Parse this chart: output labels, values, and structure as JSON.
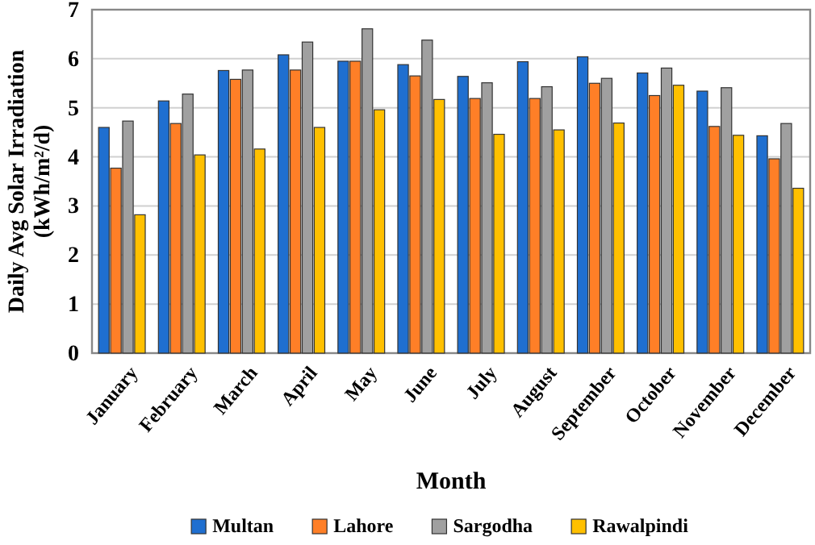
{
  "chart_data": {
    "type": "bar",
    "xlabel": "Month",
    "ylabel": "Daily Avg Solar Irradiation (kWh/m²/d)",
    "categories": [
      "January",
      "February",
      "March",
      "April",
      "May",
      "June",
      "July",
      "August",
      "September",
      "October",
      "November",
      "December"
    ],
    "series": [
      {
        "name": "Multan",
        "color": "#1f6fd0",
        "values": [
          4.6,
          5.14,
          5.76,
          6.08,
          5.95,
          5.88,
          5.64,
          5.94,
          6.04,
          5.71,
          5.34,
          4.43
        ]
      },
      {
        "name": "Lahore",
        "color": "#ff7f27",
        "values": [
          3.77,
          4.68,
          5.58,
          5.77,
          5.95,
          5.65,
          5.19,
          5.19,
          5.5,
          5.25,
          4.62,
          3.96
        ]
      },
      {
        "name": "Sargodha",
        "color": "#a0a0a0",
        "values": [
          4.73,
          5.28,
          5.77,
          6.34,
          6.61,
          6.38,
          5.51,
          5.43,
          5.6,
          5.81,
          5.41,
          4.68
        ]
      },
      {
        "name": "Rawalpindi",
        "color": "#ffc000",
        "values": [
          2.82,
          4.04,
          4.16,
          4.6,
          4.96,
          5.17,
          4.46,
          4.55,
          4.69,
          5.46,
          4.44,
          3.36
        ]
      }
    ],
    "ylim": [
      0,
      7
    ],
    "yticks": [
      0,
      1,
      2,
      3,
      4,
      5,
      6,
      7
    ],
    "grid": "y",
    "legend": "bottom"
  }
}
